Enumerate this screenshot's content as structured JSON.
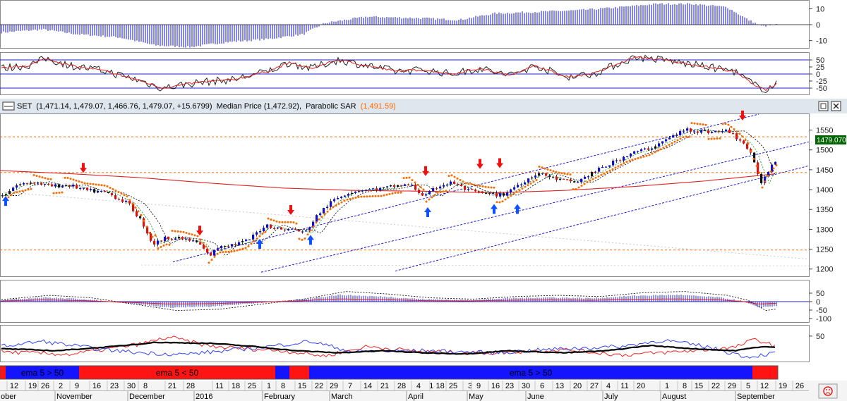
{
  "title": {
    "symbol": "SET",
    "ohlc_text": "(1,471.14, 1,479.07, 1,466.76, 1,479.07, +15.6799)",
    "median_label": "Median Price (1,472.92),",
    "sar_label": "Parabolic SAR",
    "sar_value": "(1,491.59)"
  },
  "colors": {
    "up": "#1010cc",
    "down": "#dd1111",
    "sar": "#ff6a00",
    "ma_long": "#dd2222",
    "channel": "#1a1ad8",
    "price_tag_bg": "#006400",
    "band_blue": "#1414ff",
    "band_red": "#ff1414"
  },
  "price_tag": "1479.070",
  "chart_data": [
    {
      "type": "bar",
      "pane": "histogram-top",
      "ylim": [
        -15,
        15
      ],
      "ticks": [
        "10",
        "0",
        "-10"
      ],
      "tick_values": [
        10,
        0,
        -10
      ],
      "description_values": "monthly-ish oscillator: negative Oct–Feb, positive Feb–Sep",
      "anchors": [
        [
          0,
          -5
        ],
        [
          60,
          -3
        ],
        [
          110,
          -6
        ],
        [
          170,
          -8
        ],
        [
          220,
          -13
        ],
        [
          270,
          -14
        ],
        [
          320,
          -11
        ],
        [
          380,
          -9
        ],
        [
          430,
          -6
        ],
        [
          460,
          1
        ],
        [
          520,
          5
        ],
        [
          600,
          4
        ],
        [
          650,
          3
        ],
        [
          700,
          7
        ],
        [
          760,
          8
        ],
        [
          820,
          9
        ],
        [
          880,
          11
        ],
        [
          930,
          13
        ],
        [
          980,
          13
        ],
        [
          1030,
          11
        ],
        [
          1060,
          3
        ],
        [
          1080,
          -1
        ],
        [
          1100,
          0
        ]
      ]
    },
    {
      "type": "line",
      "pane": "stochastic",
      "ylim": [
        -75,
        75
      ],
      "ticks": [
        "50",
        "25",
        "0",
        "-25",
        "-50"
      ],
      "tick_values": [
        50,
        25,
        0,
        -25,
        -50
      ],
      "levels": [
        50,
        0,
        -50
      ]
    },
    {
      "type": "line",
      "pane": "price",
      "ylim": [
        1180,
        1590
      ],
      "ticks": [
        "1550",
        "1500",
        "1450",
        "1400",
        "1350",
        "1300",
        "1250",
        "1200"
      ],
      "tick_values": [
        1550,
        1500,
        1450,
        1400,
        1350,
        1300,
        1250,
        1200
      ],
      "horizontal_levels": [
        1533,
        1443,
        1248
      ],
      "close_anchors": [
        [
          2,
          1385
        ],
        [
          20,
          1410
        ],
        [
          45,
          1420
        ],
        [
          70,
          1408
        ],
        [
          95,
          1412
        ],
        [
          120,
          1398
        ],
        [
          150,
          1392
        ],
        [
          180,
          1365
        ],
        [
          200,
          1318
        ],
        [
          215,
          1262
        ],
        [
          235,
          1280
        ],
        [
          260,
          1275
        ],
        [
          280,
          1265
        ],
        [
          295,
          1232
        ],
        [
          310,
          1260
        ],
        [
          330,
          1262
        ],
        [
          350,
          1272
        ],
        [
          375,
          1312
        ],
        [
          395,
          1300
        ],
        [
          415,
          1300
        ],
        [
          430,
          1290
        ],
        [
          450,
          1340
        ],
        [
          470,
          1372
        ],
        [
          490,
          1392
        ],
        [
          510,
          1400
        ],
        [
          540,
          1402
        ],
        [
          560,
          1410
        ],
        [
          580,
          1412
        ],
        [
          600,
          1382
        ],
        [
          620,
          1410
        ],
        [
          640,
          1418
        ],
        [
          660,
          1398
        ],
        [
          690,
          1388
        ],
        [
          710,
          1386
        ],
        [
          730,
          1410
        ],
        [
          760,
          1442
        ],
        [
          790,
          1425
        ],
        [
          815,
          1418
        ],
        [
          835,
          1440
        ],
        [
          860,
          1462
        ],
        [
          890,
          1490
        ],
        [
          920,
          1505
        ],
        [
          945,
          1528
        ],
        [
          970,
          1552
        ],
        [
          1000,
          1545
        ],
        [
          1030,
          1548
        ],
        [
          1050,
          1520
        ],
        [
          1060,
          1498
        ],
        [
          1070,
          1450
        ],
        [
          1078,
          1416
        ],
        [
          1090,
          1460
        ],
        [
          1100,
          1479
        ]
      ],
      "median_price": "1,472.92",
      "sar_last": "1,491.59"
    },
    {
      "type": "bar",
      "pane": "macd",
      "ylim": [
        -125,
        125
      ],
      "ticks": [
        "50",
        "0",
        "-50",
        "-100"
      ],
      "tick_values": [
        50,
        0,
        -50,
        -100
      ]
    },
    {
      "type": "line",
      "pane": "adx",
      "ylim": [
        0,
        70
      ],
      "ticks": [
        "50"
      ],
      "tick_values": [
        50
      ]
    }
  ],
  "bands": [
    {
      "start": 0,
      "end": 8,
      "color": "red",
      "label": ""
    },
    {
      "start": 8,
      "end": 112,
      "color": "blue",
      "label": "ema 5 > 50"
    },
    {
      "start": 112,
      "end": 390,
      "color": "red",
      "label": "ema 5 < 50"
    },
    {
      "start": 390,
      "end": 410,
      "color": "blue",
      "label": ""
    },
    {
      "start": 410,
      "end": 438,
      "color": "red",
      "label": ""
    },
    {
      "start": 438,
      "end": 1066,
      "color": "blue",
      "label": "ema 5 > 50"
    },
    {
      "start": 1066,
      "end": 1102,
      "color": "red",
      "label": ""
    }
  ],
  "dates": {
    "days": [
      "12",
      "19",
      "26",
      "2",
      "9",
      "16",
      "23",
      "30",
      "8",
      "21",
      "28",
      "11",
      "18",
      "25",
      "1",
      "8",
      "15",
      "22",
      "29",
      "7",
      "14",
      "21",
      "28",
      "4",
      "1 18",
      "25",
      "3",
      "9",
      "16",
      "23",
      "30",
      "6",
      "13",
      "20",
      "27",
      "4",
      "11",
      "20",
      "1",
      "8",
      "15",
      "22",
      "29",
      "5",
      "12",
      "19",
      "26"
    ],
    "months": [
      "ober",
      "November",
      "December",
      "2016",
      "February",
      "March",
      "April",
      "May",
      "June",
      "July",
      "August",
      "September"
    ]
  }
}
